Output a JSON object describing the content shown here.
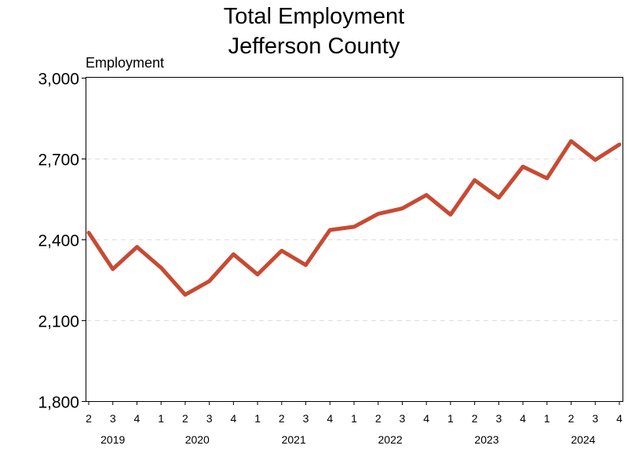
{
  "chart_data": {
    "type": "line",
    "title": [
      "Total Employment",
      "Jefferson County"
    ],
    "ylabel": "Employment",
    "ylim": [
      1800,
      3000
    ],
    "yticks": [
      1800,
      2100,
      2400,
      2700,
      3000
    ],
    "ytick_labels": [
      "1,800",
      "2,100",
      "2,400",
      "2,700",
      "3,000"
    ],
    "grid": "horizontal dashed",
    "color": "#c84a33",
    "quarters": [
      "2",
      "3",
      "4",
      "1",
      "2",
      "3",
      "4",
      "1",
      "2",
      "3",
      "4",
      "1",
      "2",
      "3",
      "4",
      "1",
      "2",
      "3",
      "4",
      "1",
      "2",
      "3",
      "4"
    ],
    "years": [
      {
        "label": "2019",
        "start": 0,
        "end": 2
      },
      {
        "label": "2020",
        "start": 3,
        "end": 6
      },
      {
        "label": "2021",
        "start": 7,
        "end": 10
      },
      {
        "label": "2022",
        "start": 11,
        "end": 14
      },
      {
        "label": "2023",
        "start": 15,
        "end": 18
      },
      {
        "label": "2024",
        "start": 19,
        "end": 22
      }
    ],
    "series": [
      {
        "values": [
          2425,
          2290,
          2372,
          2295,
          2195,
          2245,
          2345,
          2270,
          2358,
          2305,
          2435,
          2447,
          2495,
          2515,
          2565,
          2492,
          2620,
          2555,
          2670,
          2627,
          2765,
          2695,
          2752
        ]
      }
    ]
  }
}
